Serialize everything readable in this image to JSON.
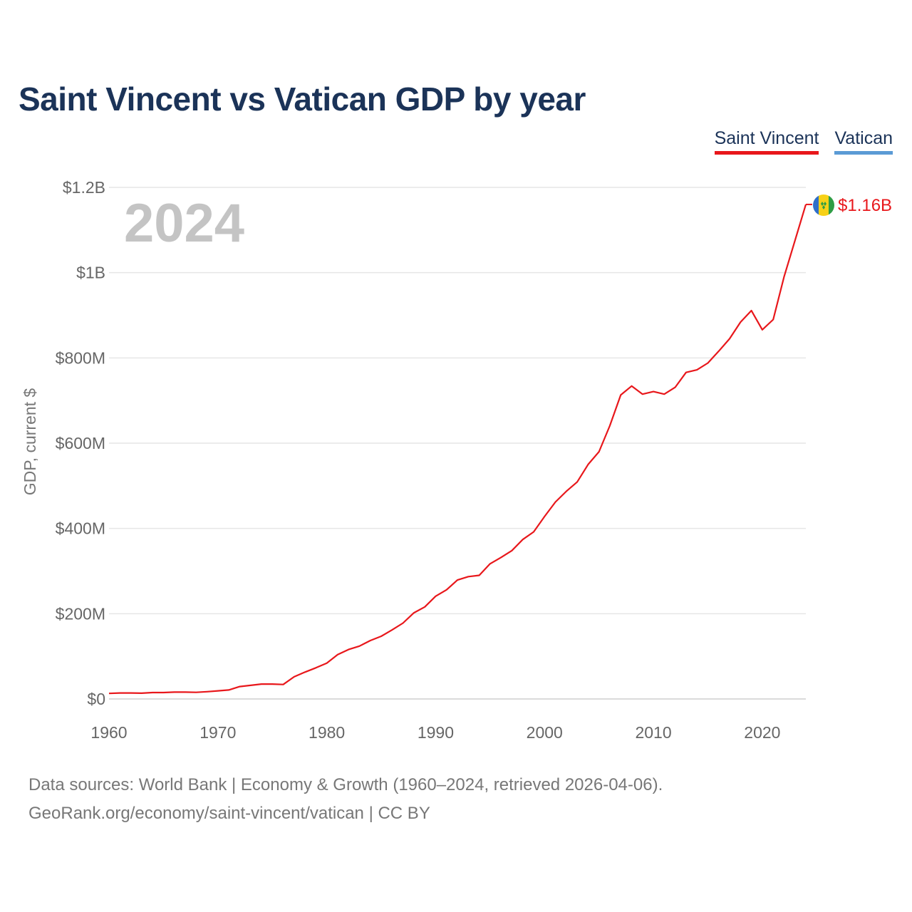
{
  "title": "Saint Vincent vs Vatican GDP by year",
  "legend": [
    {
      "label": "Saint Vincent",
      "color": "#e8171b"
    },
    {
      "label": "Vatican",
      "color": "#5b9bd5"
    }
  ],
  "year_label": "2024",
  "end_label": "$1.16B",
  "flag_icon": "saint-vincent-flag-icon",
  "footer": {
    "line1": "Data sources: World Bank | Economy & Growth (1960–2024, retrieved 2026-04-06).",
    "line2": "GeoRank.org/economy/saint-vincent/vatican | CC BY"
  },
  "chart_data": {
    "type": "line",
    "title": "Saint Vincent vs Vatican GDP by year",
    "xlabel": "",
    "ylabel": "GDP, current $",
    "xlim": [
      1960,
      2024
    ],
    "ylim": [
      0,
      1200000000
    ],
    "x_ticks": [
      1960,
      1970,
      1980,
      1990,
      2000,
      2010,
      2020
    ],
    "y_ticks": [
      {
        "value": 0,
        "label": "$0"
      },
      {
        "value": 200000000,
        "label": "$200M"
      },
      {
        "value": 400000000,
        "label": "$400M"
      },
      {
        "value": 600000000,
        "label": "$600M"
      },
      {
        "value": 800000000,
        "label": "$800M"
      },
      {
        "value": 1000000000,
        "label": "$1B"
      },
      {
        "value": 1200000000,
        "label": "$1.2B"
      }
    ],
    "grid": true,
    "series": [
      {
        "name": "Saint Vincent",
        "color": "#e8171b",
        "x": [
          1960,
          1961,
          1962,
          1963,
          1964,
          1965,
          1966,
          1967,
          1968,
          1969,
          1970,
          1971,
          1972,
          1973,
          1974,
          1975,
          1976,
          1977,
          1978,
          1979,
          1980,
          1981,
          1982,
          1983,
          1984,
          1985,
          1986,
          1987,
          1988,
          1989,
          1990,
          1991,
          1992,
          1993,
          1994,
          1995,
          1996,
          1997,
          1998,
          1999,
          2000,
          2001,
          2002,
          2003,
          2004,
          2005,
          2006,
          2007,
          2008,
          2009,
          2010,
          2011,
          2012,
          2013,
          2014,
          2015,
          2016,
          2017,
          2018,
          2019,
          2020,
          2021,
          2022,
          2023,
          2024
        ],
        "values": [
          13000000,
          14000000,
          14000000,
          13500000,
          15000000,
          15000000,
          16000000,
          16000000,
          15500000,
          17000000,
          19000000,
          21000000,
          29000000,
          32000000,
          35000000,
          35000000,
          34000000,
          52000000,
          63000000,
          73000000,
          84000000,
          104000000,
          116000000,
          124000000,
          137000000,
          147000000,
          162000000,
          178000000,
          202000000,
          216000000,
          241000000,
          256000000,
          279000000,
          287000000,
          290000000,
          317000000,
          332000000,
          348000000,
          374000000,
          392000000,
          428000000,
          462000000,
          487000000,
          509000000,
          550000000,
          580000000,
          641000000,
          713000000,
          734000000,
          715000000,
          721000000,
          715000000,
          731000000,
          766000000,
          772000000,
          788000000,
          816000000,
          845000000,
          884000000,
          911000000,
          866000000,
          890000000,
          990000000,
          1075000000,
          1160000000
        ]
      },
      {
        "name": "Vatican",
        "color": "#5b9bd5",
        "x": [],
        "values": []
      }
    ]
  }
}
